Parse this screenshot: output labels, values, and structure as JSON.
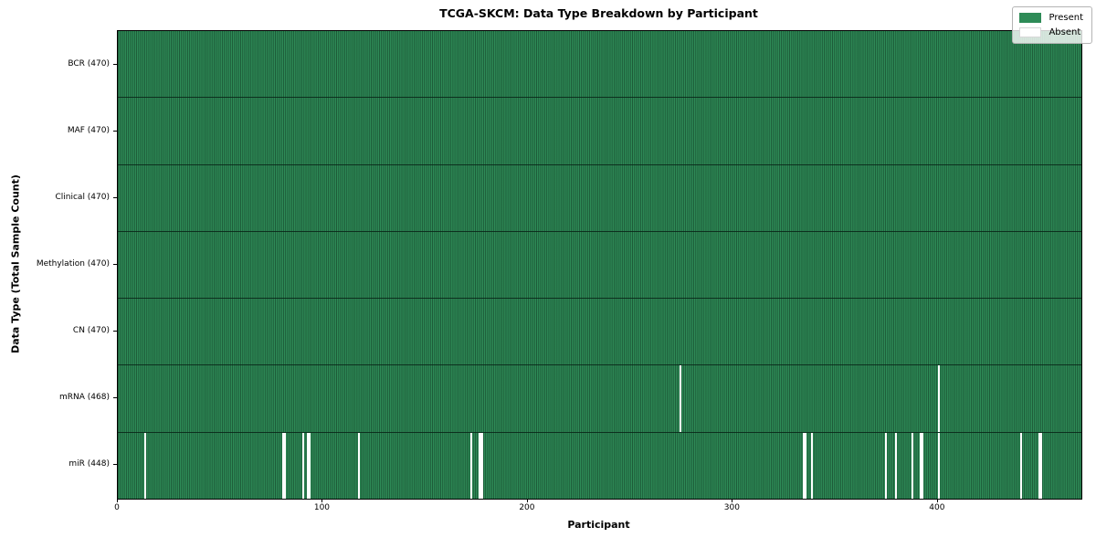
{
  "chart_data": {
    "type": "heatmap",
    "title": "TCGA-SKCM: Data Type Breakdown by Participant",
    "xlabel": "Participant",
    "ylabel": "Data Type (Total Sample Count)",
    "n_participants": 470,
    "x_ticks": [
      0,
      100,
      200,
      300,
      400
    ],
    "legend_position": "upper right",
    "grid": false,
    "legend": [
      {
        "label": "Present",
        "key": "present"
      },
      {
        "label": "Absent",
        "key": "absent"
      }
    ],
    "colors": {
      "present": "#2e8b57",
      "absent": "#ffffff",
      "cell_edge": "#0d2e1c",
      "axis": "#000000",
      "legend_border": "#b4b4b4",
      "figure_bg": "#ffffff"
    },
    "rows": [
      {
        "data_type": "BCR",
        "label": "BCR (470)",
        "present_count": 470,
        "absent_participants": []
      },
      {
        "data_type": "MAF",
        "label": "MAF (470)",
        "present_count": 470,
        "absent_participants": []
      },
      {
        "data_type": "Clinical",
        "label": "Clinical (470)",
        "present_count": 470,
        "absent_participants": []
      },
      {
        "data_type": "Methylation",
        "label": "Methylation (470)",
        "present_count": 470,
        "absent_participants": []
      },
      {
        "data_type": "CN",
        "label": "CN (470)",
        "present_count": 470,
        "absent_participants": []
      },
      {
        "data_type": "mRNA",
        "label": "mRNA (468)",
        "present_count": 468,
        "absent_participants": [
          274,
          400
        ]
      },
      {
        "data_type": "miR",
        "label": "miR (448)",
        "present_count": 448,
        "absent_participants": [
          13,
          80,
          81,
          90,
          92,
          93,
          117,
          172,
          176,
          177,
          334,
          335,
          338,
          374,
          379,
          387,
          391,
          392,
          400,
          440,
          449,
          450
        ]
      }
    ]
  }
}
